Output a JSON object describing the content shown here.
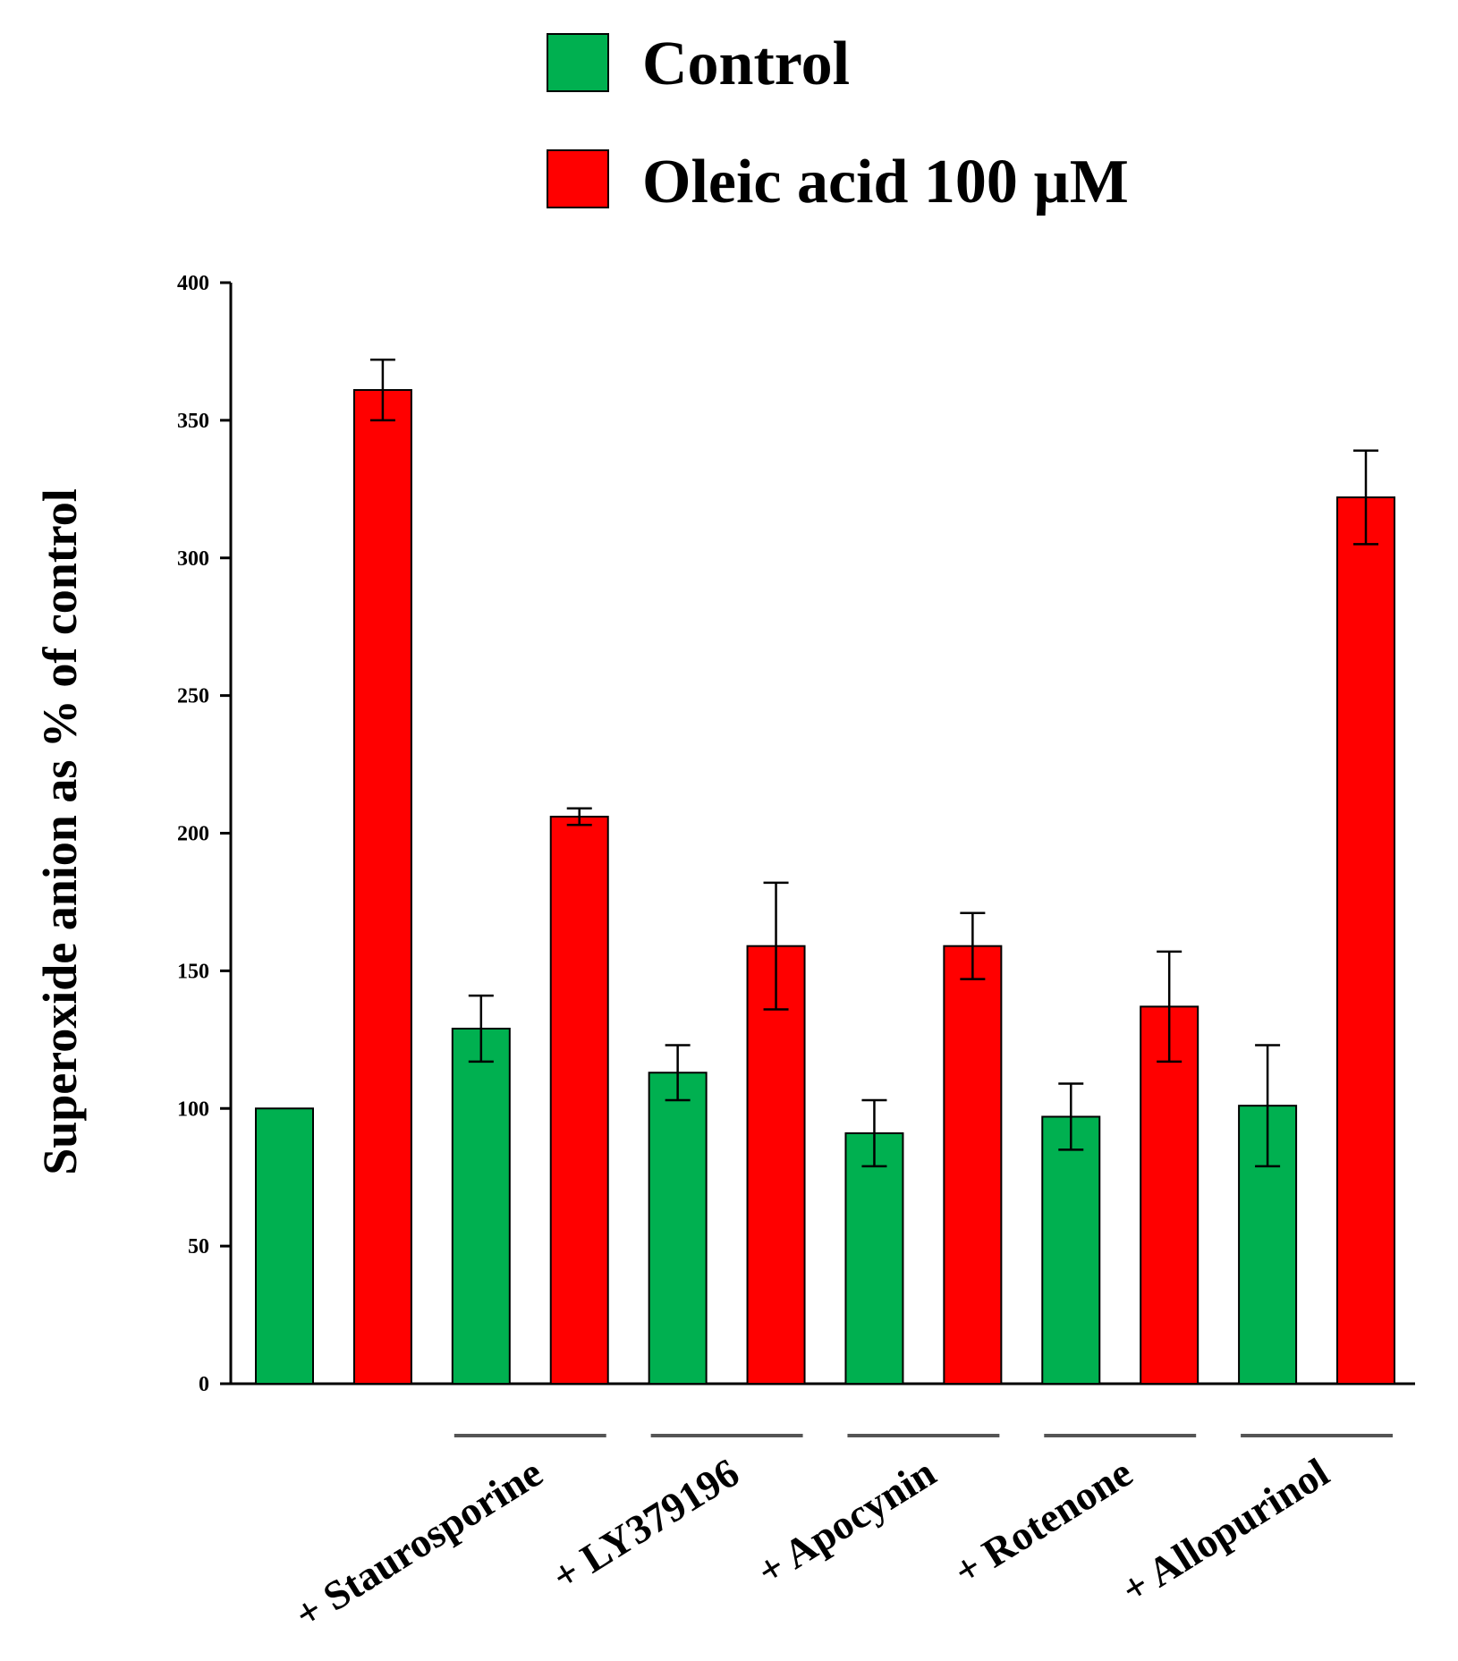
{
  "chart_data": {
    "type": "bar",
    "title": "",
    "ylabel": "Superoxide anion as % of control",
    "xlabel": "",
    "ylim": [
      0,
      400
    ],
    "yticks": [
      0,
      50,
      100,
      150,
      200,
      250,
      300,
      350,
      400
    ],
    "legend_position": "top",
    "series": [
      {
        "name": "Control",
        "color": "#00b050"
      },
      {
        "name": "Oleic acid 100 µM",
        "color": "#ff0000"
      }
    ],
    "bars": [
      {
        "series": 0,
        "value": 100,
        "error": 0
      },
      {
        "series": 1,
        "value": 361,
        "error": 11
      },
      {
        "series": 0,
        "value": 129,
        "error": 12
      },
      {
        "series": 1,
        "value": 206,
        "error": 3
      },
      {
        "series": 0,
        "value": 113,
        "error": 10
      },
      {
        "series": 1,
        "value": 159,
        "error": 23
      },
      {
        "series": 0,
        "value": 91,
        "error": 12
      },
      {
        "series": 1,
        "value": 159,
        "error": 12
      },
      {
        "series": 0,
        "value": 97,
        "error": 12
      },
      {
        "series": 1,
        "value": 137,
        "error": 20
      },
      {
        "series": 0,
        "value": 101,
        "error": 22
      },
      {
        "series": 1,
        "value": 322,
        "error": 17
      }
    ],
    "groups": [
      {
        "label": "+ Staurosporine",
        "bars": [
          2,
          3
        ]
      },
      {
        "label": "+ LY379196",
        "bars": [
          4,
          5
        ]
      },
      {
        "label": "+ Apocynin",
        "bars": [
          6,
          7
        ]
      },
      {
        "label": "+ Rotenone",
        "bars": [
          8,
          9
        ]
      },
      {
        "label": "+ Allopurinol",
        "bars": [
          10,
          11
        ]
      }
    ]
  }
}
